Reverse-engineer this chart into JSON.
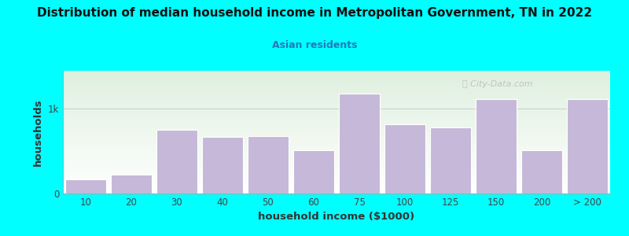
{
  "title": "Distribution of median household income in Metropolitan Government, TN in 2022",
  "subtitle": "Asian residents",
  "xlabel": "household income ($1000)",
  "ylabel": "households",
  "background_color": "#00FFFF",
  "bar_color": "#c5b8d8",
  "bar_edgecolor": "#ffffff",
  "categories": [
    "10",
    "20",
    "30",
    "40",
    "50",
    "60",
    "75",
    "100",
    "125",
    "150",
    "200",
    "> 200"
  ],
  "values": [
    170,
    220,
    750,
    670,
    680,
    510,
    1180,
    820,
    780,
    1120,
    510,
    1120
  ],
  "ylim": [
    0,
    1450
  ],
  "yticks": [
    0,
    1000
  ],
  "ytick_labels": [
    "0",
    "1k"
  ],
  "watermark": "Ⓢ City-Data.com",
  "plot_bg_top_color": "#dff0df",
  "plot_bg_bottom_color": "#ffffff",
  "title_fontsize": 11,
  "subtitle_fontsize": 9,
  "subtitle_color": "#2277bb",
  "axis_label_fontsize": 9.5,
  "tick_fontsize": 8.5,
  "hline_y": 1000,
  "hline_color": "#cccccc"
}
